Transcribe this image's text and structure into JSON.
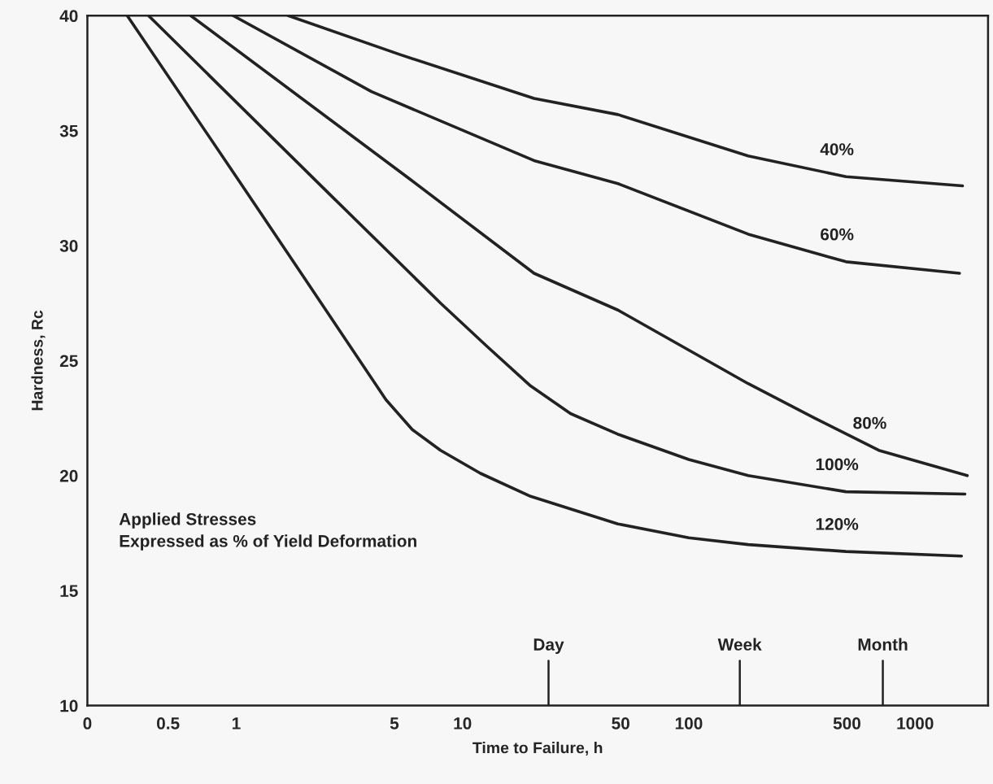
{
  "chart_data": {
    "type": "line",
    "xlabel": "Time to Failure, h",
    "ylabel": "Hardness, Rc",
    "log": "x",
    "grid": false,
    "marker": "none",
    "line_style": "solid",
    "xlim": [
      0.22,
      2100
    ],
    "ylim": [
      10,
      40
    ],
    "xticks": [
      {
        "value": 0.22,
        "label": "0"
      },
      0.5,
      1,
      5,
      10,
      50,
      100,
      500,
      1000
    ],
    "yticks": [
      10,
      15,
      20,
      25,
      30,
      35,
      40
    ],
    "series": [
      {
        "name": "40%",
        "color": "#222222",
        "x": [
          1.7,
          5.33,
          20.7,
          48.6,
          183,
          495,
          1620
        ],
        "values": [
          40,
          38.3,
          36.4,
          35.7,
          33.9,
          33.0,
          32.6
        ]
      },
      {
        "name": "60%",
        "color": "#222222",
        "x": [
          0.97,
          3.96,
          20.7,
          48.6,
          183,
          495,
          1570
        ],
        "values": [
          40,
          36.7,
          33.7,
          32.7,
          30.5,
          29.3,
          28.8
        ]
      },
      {
        "name": "80%",
        "color": "#222222",
        "x": [
          0.63,
          5.84,
          20.7,
          48.6,
          183,
          360,
          691,
          1700
        ],
        "values": [
          40,
          32.9,
          28.8,
          27.2,
          24.0,
          22.5,
          21.1,
          20.0
        ]
      },
      {
        "name": "100%",
        "color": "#222222",
        "x": [
          0.41,
          2.61,
          8,
          12.9,
          20,
          30,
          48.6,
          100,
          183,
          495,
          1660
        ],
        "values": [
          40,
          32.2,
          27.5,
          25.6,
          23.9,
          22.7,
          21.8,
          20.7,
          20.0,
          19.3,
          19.2
        ]
      },
      {
        "name": "120%",
        "color": "#222222",
        "x": [
          0.33,
          1,
          2,
          4.59,
          6,
          8,
          12,
          20,
          48.6,
          100,
          183,
          495,
          1603
        ],
        "values": [
          40,
          33.0,
          28.6,
          23.3,
          22.0,
          21.1,
          20.1,
          19.1,
          17.9,
          17.3,
          17.0,
          16.7,
          16.5
        ]
      }
    ],
    "annotations": [
      "Applied Stresses\nExpressed as % of Yield Deformation"
    ],
    "ref_lines": [
      {
        "axis": "x",
        "value": 24,
        "label": "Day"
      },
      {
        "axis": "x",
        "value": 168,
        "label": "Week"
      },
      {
        "axis": "x",
        "value": 720,
        "label": "Month"
      }
    ]
  }
}
